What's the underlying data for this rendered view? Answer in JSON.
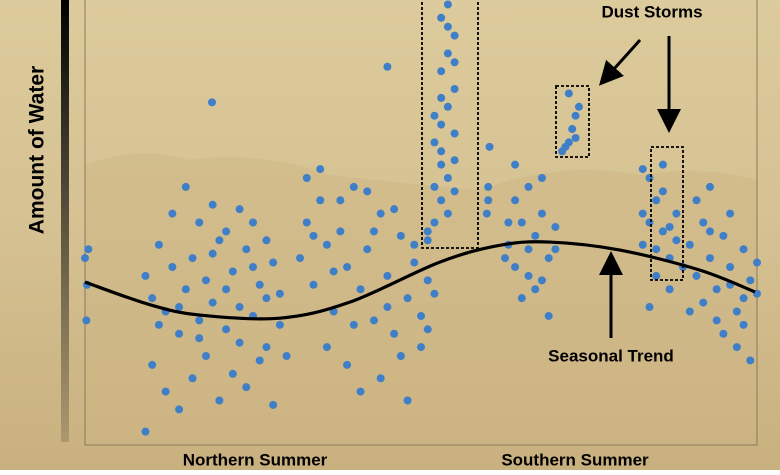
{
  "chart_data": {
    "type": "scatter",
    "ylabel": "Amount of Water",
    "x_labels": [
      "Northern Summer",
      "Southern Summer"
    ],
    "annotations": [
      "Dust Storms"
    ],
    "xlim": [
      0,
      100
    ],
    "ylim": [
      0,
      100
    ],
    "series": [
      {
        "color": "#3f7fc8",
        "x": [
          0,
          0.3,
          0.2,
          0.5,
          9,
          10,
          11,
          12,
          13,
          14,
          15,
          16,
          17,
          18,
          19,
          20,
          21,
          22,
          23,
          24,
          25,
          26,
          27,
          28,
          29,
          10,
          12,
          14,
          9,
          16,
          18,
          20,
          22,
          24,
          26,
          28,
          13,
          15,
          17,
          19,
          21,
          23,
          25,
          27,
          11,
          14,
          17,
          19,
          21,
          23,
          25,
          27,
          29,
          30,
          32,
          33,
          34,
          35,
          36,
          37,
          38,
          39,
          40,
          41,
          42,
          43,
          44,
          45,
          46,
          47,
          48,
          49,
          50,
          51,
          33,
          35,
          38,
          42,
          46,
          36,
          39,
          41,
          44,
          48,
          50,
          52,
          34,
          37,
          40,
          43,
          45,
          47,
          49,
          51,
          51,
          52,
          53,
          54,
          55,
          52,
          53,
          54,
          55,
          53,
          54,
          55,
          53,
          54,
          55,
          52,
          53,
          54,
          55,
          53,
          51,
          52,
          54,
          55,
          53,
          45,
          18.9,
          60,
          60,
          59.8,
          60.2,
          63,
          64,
          65,
          66,
          67,
          68,
          69,
          70,
          64,
          66,
          68,
          65,
          67,
          69,
          63,
          70,
          62.5,
          66,
          68,
          64,
          71,
          72,
          72.5,
          73,
          73.5,
          72,
          73,
          71.5,
          83,
          84,
          85,
          86,
          87,
          88,
          84,
          86,
          85,
          87,
          83,
          88,
          89,
          84,
          86,
          85,
          87,
          83,
          90,
          91,
          92,
          93,
          94,
          95,
          96,
          97,
          98,
          99,
          91,
          93,
          95,
          97,
          99,
          92,
          94,
          96,
          98,
          100,
          90,
          93,
          96,
          98,
          100
        ],
        "y": [
          42,
          36,
          28,
          44,
          38,
          33,
          45,
          30,
          40,
          25,
          35,
          42,
          28,
          37,
          32,
          46,
          26,
          39,
          31,
          44,
          29,
          36,
          22,
          41,
          34,
          18,
          12,
          8,
          3,
          15,
          20,
          10,
          16,
          13,
          19,
          9,
          52,
          58,
          50,
          54,
          48,
          53,
          50,
          46,
          27,
          31,
          24,
          43,
          35,
          23,
          40,
          33,
          27,
          20,
          42,
          50,
          36,
          55,
          45,
          30,
          48,
          40,
          58,
          35,
          44,
          28,
          52,
          38,
          25,
          47,
          33,
          41,
          29,
          37,
          60,
          62,
          55,
          57,
          53,
          22,
          18,
          12,
          15,
          10,
          22,
          34,
          47,
          39,
          27,
          48,
          31,
          20,
          45,
          26,
          46,
          50,
          55,
          60,
          64,
          68,
          72,
          76,
          80,
          84,
          88,
          92,
          96,
          99,
          70,
          58,
          63,
          52,
          86,
          78,
          48,
          74,
          94,
          57,
          66,
          85,
          77,
          55,
          58,
          52,
          67,
          45,
          40,
          50,
          38,
          47,
          52,
          42,
          49,
          55,
          58,
          60,
          33,
          35,
          29,
          50,
          44,
          42,
          44,
          37,
          63,
          66,
          68,
          71,
          74,
          76,
          79,
          69,
          67,
          45,
          50,
          55,
          48,
          42,
          52,
          60,
          63,
          38,
          35,
          52,
          46,
          40,
          31,
          57,
          44,
          49,
          62,
          45,
          38,
          50,
          42,
          35,
          47,
          40,
          30,
          44,
          37,
          55,
          58,
          25,
          22,
          19,
          32,
          28,
          52,
          33,
          41,
          30,
          48,
          36,
          27,
          34
        ]
      },
      {
        "name": "Seasonal Trend",
        "type": "line",
        "color": "#000000",
        "x": [
          0,
          9.7,
          17.1,
          29.0,
          39.4,
          52.8,
          61.8,
          69.2,
          79.6,
          91.5,
          99.7
        ],
        "y": [
          36.6,
          31.5,
          29.2,
          28.5,
          32.1,
          41.1,
          44.9,
          45.6,
          43.8,
          39.3,
          34.4
        ]
      }
    ]
  }
}
